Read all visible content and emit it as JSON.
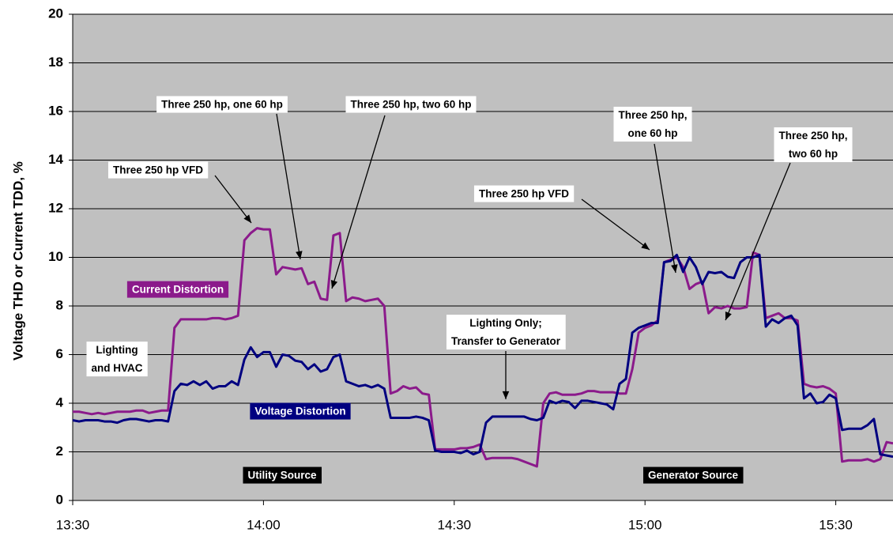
{
  "chart_data": {
    "type": "line",
    "y_label": "Voltage THD or Current TDD, %",
    "x": [
      "13:30",
      "13:31",
      "13:32",
      "13:33",
      "13:34",
      "13:35",
      "13:36",
      "13:37",
      "13:38",
      "13:39",
      "13:40",
      "13:41",
      "13:42",
      "13:43",
      "13:44",
      "13:45",
      "13:46",
      "13:47",
      "13:48",
      "13:49",
      "13:50",
      "13:51",
      "13:52",
      "13:53",
      "13:54",
      "13:55",
      "13:56",
      "13:57",
      "13:58",
      "13:59",
      "14:00",
      "14:01",
      "14:02",
      "14:03",
      "14:04",
      "14:05",
      "14:06",
      "14:07",
      "14:08",
      "14:09",
      "14:10",
      "14:11",
      "14:12",
      "14:13",
      "14:14",
      "14:15",
      "14:16",
      "14:17",
      "14:18",
      "14:19",
      "14:20",
      "14:21",
      "14:22",
      "14:23",
      "14:24",
      "14:25",
      "14:26",
      "14:27",
      "14:28",
      "14:29",
      "14:30",
      "14:31",
      "14:32",
      "14:33",
      "14:34",
      "14:35",
      "14:36",
      "14:37",
      "14:38",
      "14:39",
      "14:40",
      "14:41",
      "14:42",
      "14:43",
      "14:44",
      "14:45",
      "14:46",
      "14:47",
      "14:48",
      "14:49",
      "14:50",
      "14:51",
      "14:52",
      "14:53",
      "14:54",
      "14:55",
      "14:56",
      "14:57",
      "14:58",
      "14:59",
      "15:00",
      "15:01",
      "15:02",
      "15:03",
      "15:04",
      "15:05",
      "15:06",
      "15:07",
      "15:08",
      "15:09",
      "15:10",
      "15:11",
      "15:12",
      "15:13",
      "15:14",
      "15:15",
      "15:16",
      "15:17",
      "15:18",
      "15:19",
      "15:20",
      "15:21",
      "15:22",
      "15:23",
      "15:24",
      "15:25",
      "15:26",
      "15:27",
      "15:28",
      "15:29",
      "15:30",
      "15:31",
      "15:32",
      "15:33",
      "15:34",
      "15:35",
      "15:36",
      "15:37",
      "15:38",
      "15:39"
    ],
    "series": [
      {
        "name": "Current Distortion",
        "color": "#8b1a8b",
        "values": [
          3.65,
          3.65,
          3.6,
          3.55,
          3.6,
          3.55,
          3.6,
          3.65,
          3.65,
          3.65,
          3.7,
          3.7,
          3.6,
          3.65,
          3.7,
          3.7,
          7.1,
          7.45,
          7.45,
          7.45,
          7.45,
          7.45,
          7.5,
          7.5,
          7.45,
          7.5,
          7.6,
          10.7,
          11.0,
          11.2,
          11.15,
          11.15,
          9.3,
          9.6,
          9.55,
          9.5,
          9.55,
          8.9,
          9.0,
          8.3,
          8.25,
          10.9,
          11.0,
          8.2,
          8.35,
          8.3,
          8.2,
          8.25,
          8.3,
          8.0,
          4.4,
          4.5,
          4.7,
          4.6,
          4.65,
          4.4,
          4.35,
          2.1,
          2.1,
          2.1,
          2.1,
          2.15,
          2.15,
          2.2,
          2.3,
          1.7,
          1.75,
          1.75,
          1.75,
          1.75,
          1.7,
          1.6,
          1.5,
          1.4,
          4.0,
          4.4,
          4.45,
          4.35,
          4.35,
          4.35,
          4.4,
          4.5,
          4.5,
          4.45,
          4.45,
          4.45,
          4.4,
          4.4,
          5.4,
          6.9,
          7.1,
          7.2,
          7.4,
          9.8,
          9.9,
          10.0,
          9.6,
          8.7,
          8.9,
          9.0,
          7.7,
          7.95,
          7.9,
          8.0,
          7.9,
          7.9,
          7.95,
          10.2,
          10.1,
          7.5,
          7.6,
          7.7,
          7.5,
          7.5,
          7.4,
          4.8,
          4.7,
          4.65,
          4.7,
          4.6,
          4.4,
          1.6,
          1.65,
          1.65,
          1.65,
          1.7,
          1.6,
          1.7,
          2.4,
          2.35
        ]
      },
      {
        "name": "Voltage Distortion",
        "color": "#000080",
        "values": [
          3.3,
          3.25,
          3.3,
          3.3,
          3.3,
          3.25,
          3.25,
          3.2,
          3.3,
          3.35,
          3.35,
          3.3,
          3.25,
          3.3,
          3.3,
          3.25,
          4.5,
          4.8,
          4.75,
          4.9,
          4.75,
          4.9,
          4.6,
          4.7,
          4.7,
          4.9,
          4.75,
          5.8,
          6.3,
          5.9,
          6.1,
          6.1,
          5.5,
          6.0,
          5.95,
          5.75,
          5.7,
          5.4,
          5.6,
          5.3,
          5.4,
          5.9,
          6.0,
          4.9,
          4.8,
          4.7,
          4.75,
          4.65,
          4.75,
          4.6,
          3.4,
          3.4,
          3.4,
          3.4,
          3.45,
          3.4,
          3.3,
          2.05,
          2.0,
          2.0,
          2.0,
          1.95,
          2.05,
          1.9,
          2.0,
          3.2,
          3.45,
          3.45,
          3.45,
          3.45,
          3.45,
          3.45,
          3.35,
          3.3,
          3.4,
          4.1,
          4.0,
          4.1,
          4.05,
          3.8,
          4.1,
          4.1,
          4.05,
          4.0,
          3.95,
          3.75,
          4.8,
          5.0,
          6.9,
          7.1,
          7.2,
          7.3,
          7.3,
          9.8,
          9.85,
          10.1,
          9.4,
          10.0,
          9.6,
          8.9,
          9.4,
          9.35,
          9.4,
          9.2,
          9.15,
          9.8,
          10.0,
          10.0,
          10.1,
          7.15,
          7.45,
          7.3,
          7.5,
          7.6,
          7.2,
          4.2,
          4.4,
          4.0,
          4.05,
          4.35,
          4.2,
          2.9,
          2.95,
          2.95,
          2.95,
          3.1,
          3.35,
          1.9,
          1.85,
          1.8
        ]
      }
    ],
    "xlim": [
      "13:30",
      "15:39"
    ],
    "xticks": [
      "13:30",
      "14:00",
      "14:30",
      "15:00",
      "15:30"
    ],
    "ylim": [
      0,
      20
    ],
    "yticks": [
      0,
      2,
      4,
      6,
      8,
      10,
      12,
      14,
      16,
      18,
      20
    ],
    "grid": true,
    "annotations": [
      {
        "lines": [
          "Three 250 hp VFD"
        ]
      },
      {
        "lines": [
          "Three 250 hp, one 60 hp"
        ]
      },
      {
        "lines": [
          "Three 250 hp, two 60 hp"
        ]
      },
      {
        "lines": [
          "Three 250 hp VFD"
        ]
      },
      {
        "lines": [
          "Three 250 hp,",
          "one 60 hp"
        ]
      },
      {
        "lines": [
          "Three 250 hp,",
          "two 60 hp"
        ]
      },
      {
        "lines": [
          "Lighting Only;",
          "Transfer to Generator"
        ]
      },
      {
        "lines": [
          "Lighting",
          "and HVAC"
        ]
      },
      {
        "lines": [
          "Utility Source"
        ]
      },
      {
        "lines": [
          "Generator Source"
        ]
      }
    ]
  }
}
